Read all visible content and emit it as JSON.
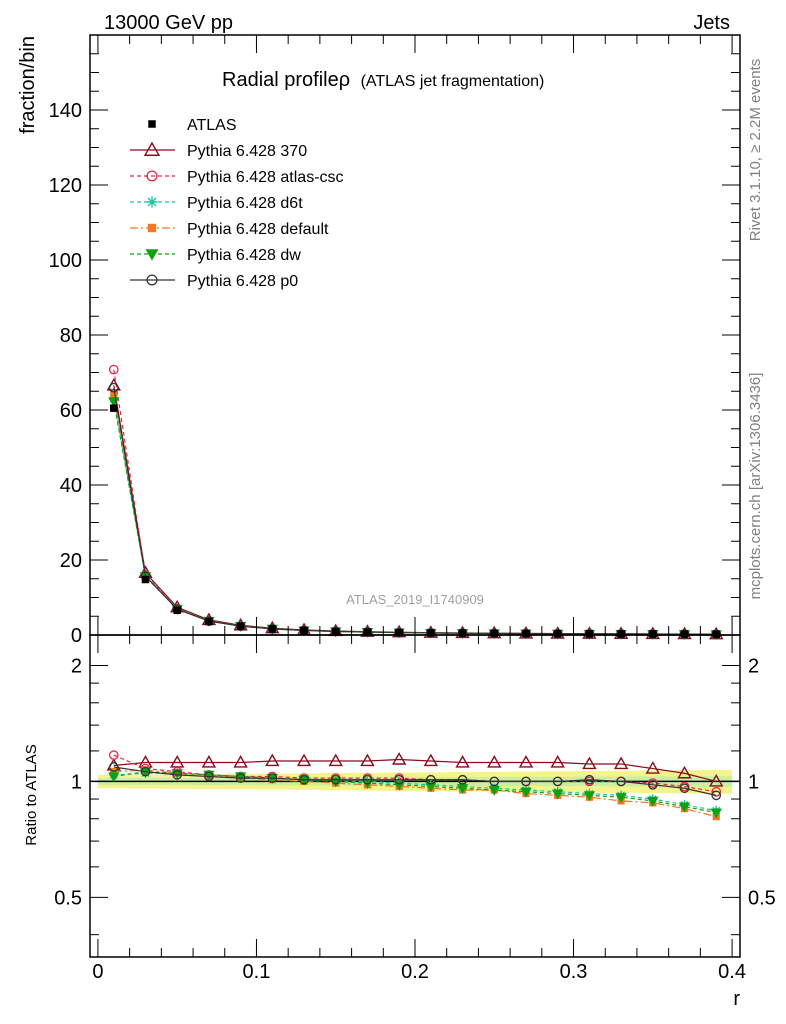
{
  "header": {
    "left": "13000 GeV pp",
    "right": "Jets"
  },
  "side": {
    "rivet": "Rivet 3.1.10, ≥ 2.2M events",
    "source": "mcplots.cern.ch [arXiv:1306.3436]"
  },
  "chart_data": {
    "type": "line",
    "title": "Radial profileρ",
    "title_sub": "(ATLAS jet fragmentation)",
    "watermark": "ATLAS_2019_I1740909",
    "xlabel": "r",
    "ylabel": "fraction/bin",
    "ratio_ylabel": "Ratio to ATLAS",
    "xlim": [
      -0.005,
      0.405
    ],
    "ylim": [
      0,
      160
    ],
    "ratio_ylim": [
      0.35,
      2.4
    ],
    "ratio_log_scale": true,
    "x_ticks": [
      "0",
      "0.1",
      "0.2",
      "0.3",
      "0.4"
    ],
    "y_ticks": [
      "0",
      "20",
      "40",
      "60",
      "80",
      "100",
      "120",
      "140"
    ],
    "ratio_ticks": [
      "0.5",
      "1",
      "2"
    ],
    "legend_position": "top-left",
    "x": [
      0.01,
      0.03,
      0.05,
      0.07,
      0.09,
      0.11,
      0.13,
      0.15,
      0.17,
      0.19,
      0.21,
      0.23,
      0.25,
      0.27,
      0.29,
      0.31,
      0.33,
      0.35,
      0.37,
      0.39
    ],
    "data": {
      "name": "ATLAS",
      "values": [
        60.5,
        14.8,
        6.6,
        3.6,
        2.3,
        1.6,
        1.2,
        0.95,
        0.78,
        0.65,
        0.55,
        0.48,
        0.43,
        0.38,
        0.34,
        0.31,
        0.28,
        0.26,
        0.24,
        0.22
      ],
      "band_outer": 0.04,
      "band_inner": 0.02
    },
    "series": [
      {
        "name": "Pythia 6.428 370",
        "color": "#8b0a1e",
        "dash": "",
        "marker": "triangle-open",
        "ratio": [
          1.1,
          1.12,
          1.12,
          1.12,
          1.12,
          1.13,
          1.13,
          1.13,
          1.13,
          1.14,
          1.13,
          1.12,
          1.12,
          1.12,
          1.12,
          1.11,
          1.11,
          1.08,
          1.05,
          1.0
        ]
      },
      {
        "name": "Pythia 6.428 atlas-csc",
        "color": "#e8244a",
        "dash": "4,3",
        "marker": "circle-open",
        "ratio": [
          1.17,
          1.08,
          1.06,
          1.04,
          1.03,
          1.03,
          1.02,
          1.02,
          1.02,
          1.02,
          1.01,
          1.01,
          1.0,
          1.0,
          1.0,
          1.0,
          1.0,
          0.99,
          0.97,
          0.94
        ]
      },
      {
        "name": "Pythia 6.428 d6t",
        "color": "#18c89c",
        "dash": "4,3",
        "marker": "star",
        "ratio": [
          1.04,
          1.05,
          1.05,
          1.04,
          1.03,
          1.02,
          1.01,
          1.0,
          1.0,
          0.99,
          0.98,
          0.97,
          0.96,
          0.95,
          0.94,
          0.93,
          0.92,
          0.9,
          0.87,
          0.84
        ]
      },
      {
        "name": "Pythia 6.428 default",
        "color": "#f07820",
        "dash": "8,3,2,3",
        "marker": "square",
        "ratio": [
          1.06,
          1.07,
          1.05,
          1.04,
          1.02,
          1.01,
          1.0,
          0.99,
          0.98,
          0.97,
          0.96,
          0.95,
          0.95,
          0.93,
          0.92,
          0.91,
          0.89,
          0.88,
          0.85,
          0.81
        ]
      },
      {
        "name": "Pythia 6.428 dw",
        "color": "#10a010",
        "dash": "4,3",
        "marker": "triangle-down",
        "ratio": [
          1.03,
          1.06,
          1.05,
          1.04,
          1.03,
          1.02,
          1.01,
          1.0,
          0.99,
          0.98,
          0.97,
          0.96,
          0.95,
          0.94,
          0.93,
          0.92,
          0.91,
          0.89,
          0.86,
          0.83
        ]
      },
      {
        "name": "Pythia 6.428 p0",
        "color": "#333333",
        "dash": "",
        "marker": "circle-open",
        "ratio": [
          1.09,
          1.06,
          1.04,
          1.03,
          1.02,
          1.02,
          1.01,
          1.01,
          1.01,
          1.01,
          1.01,
          1.01,
          1.0,
          1.0,
          1.0,
          1.01,
          1.0,
          0.98,
          0.96,
          0.92
        ]
      }
    ]
  }
}
